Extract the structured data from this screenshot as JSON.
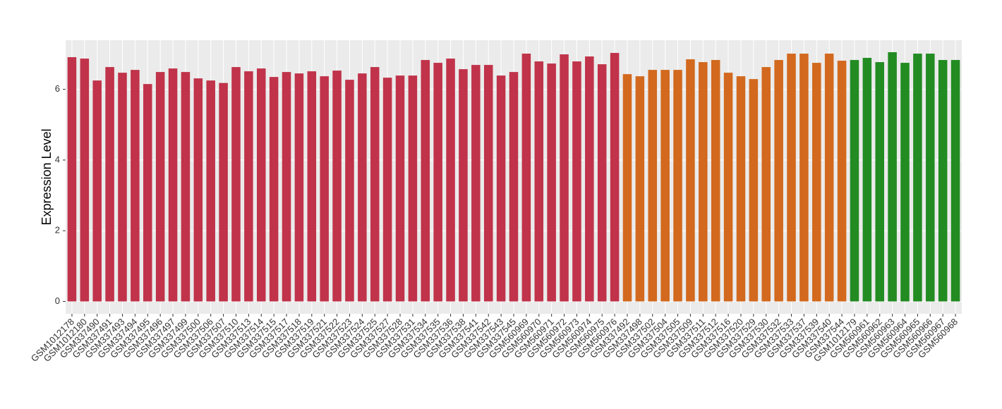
{
  "chart_data": {
    "type": "bar",
    "y_label": "Expression Level",
    "ylim": [
      -0.35,
      7.39
    ],
    "yticks": [
      0,
      2,
      4,
      6
    ],
    "grid": true,
    "series": [
      {
        "color": "#C0334A",
        "categories": [
          "GSM1012178",
          "GSM1012180",
          "GSM337490",
          "GSM337491",
          "GSM337493",
          "GSM337494",
          "GSM337495",
          "GSM337496",
          "GSM337497",
          "GSM337499",
          "GSM337500",
          "GSM337506",
          "GSM337507",
          "GSM337510",
          "GSM337513",
          "GSM337514",
          "GSM337515",
          "GSM337517",
          "GSM337518",
          "GSM337519",
          "GSM337521",
          "GSM337522",
          "GSM337523",
          "GSM337524",
          "GSM337525",
          "GSM337527",
          "GSM337528",
          "GSM337531",
          "GSM337534",
          "GSM337535",
          "GSM337536",
          "GSM337538",
          "GSM337541",
          "GSM337542",
          "GSM337543",
          "GSM337545",
          "GSM560969",
          "GSM560970",
          "GSM560971",
          "GSM560972",
          "GSM560973",
          "GSM560974",
          "GSM560975",
          "GSM560976"
        ],
        "values": [
          6.91,
          6.87,
          6.25,
          6.63,
          6.47,
          6.55,
          6.15,
          6.49,
          6.59,
          6.49,
          6.31,
          6.25,
          6.18,
          6.63,
          6.51,
          6.59,
          6.35,
          6.49,
          6.45,
          6.51,
          6.37,
          6.53,
          6.27,
          6.45,
          6.63,
          6.33,
          6.39,
          6.39,
          6.83,
          6.75,
          6.87,
          6.57,
          6.69,
          6.69,
          6.39,
          6.49,
          7.01,
          6.79,
          6.73,
          6.99,
          6.79,
          6.93,
          6.71,
          7.03
        ]
      },
      {
        "color": "#D2691E",
        "categories": [
          "GSM337492",
          "GSM337498",
          "GSM337502",
          "GSM337504",
          "GSM337505",
          "GSM337509",
          "GSM337511",
          "GSM337512",
          "GSM337516",
          "GSM337520",
          "GSM337529",
          "GSM337530",
          "GSM337532",
          "GSM337533",
          "GSM337537",
          "GSM337539",
          "GSM337540",
          "GSM337544"
        ],
        "values": [
          6.43,
          6.37,
          6.55,
          6.55,
          6.55,
          6.85,
          6.77,
          6.83,
          6.47,
          6.37,
          6.29,
          6.63,
          6.83,
          7.01,
          7.01,
          6.75,
          7.01,
          6.81
        ]
      },
      {
        "color": "#228B22",
        "categories": [
          "GSM1012179",
          "GSM560961",
          "GSM560962",
          "GSM560963",
          "GSM560964",
          "GSM560965",
          "GSM560966",
          "GSM560967",
          "GSM560968"
        ],
        "values": [
          6.83,
          6.89,
          6.77,
          7.05,
          6.75,
          7.01,
          7.01,
          6.83,
          6.83
        ]
      }
    ]
  }
}
